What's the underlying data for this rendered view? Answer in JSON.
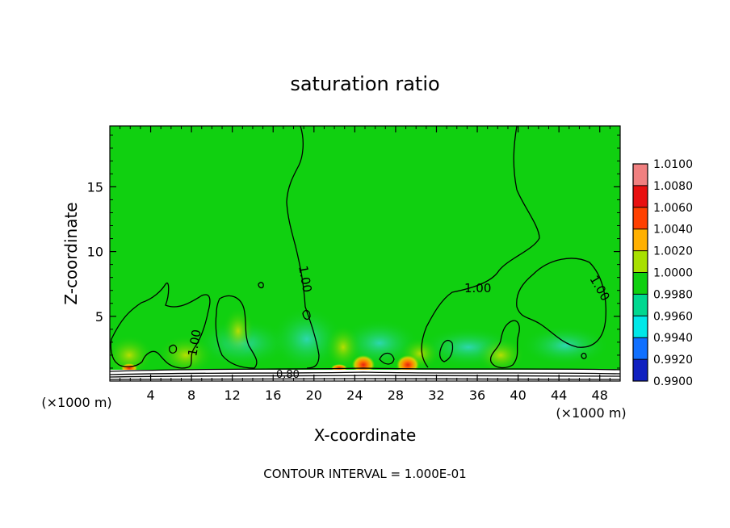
{
  "chart_data": {
    "type": "heatmap",
    "subtype": "filled-contour",
    "title": "saturation ratio",
    "xlabel": "X-coordinate",
    "ylabel": "Z-coordinate",
    "x_unit": "(×1000 m)",
    "x_unit_right": "(×1000 m)",
    "xlim": [
      0,
      50
    ],
    "ylim": [
      0,
      19.7
    ],
    "x_ticks": [
      4,
      8,
      12,
      16,
      20,
      24,
      28,
      32,
      36,
      40,
      44,
      48
    ],
    "y_ticks": [
      5,
      10,
      15
    ],
    "colorbar": {
      "levels": [
        "1.0100",
        "1.0080",
        "1.0060",
        "1.0040",
        "1.0020",
        "1.0000",
        "0.9980",
        "0.9960",
        "0.9940",
        "0.9920",
        "0.9900"
      ],
      "colors": [
        "#f08080",
        "#e81010",
        "#ff4000",
        "#ffb000",
        "#a8e000",
        "#10d010",
        "#00d890",
        "#00e8e8",
        "#1070ff",
        "#1020c0",
        "#6010a0"
      ]
    },
    "contour_labels": [
      "1.00",
      "1.00",
      "1.00",
      "1.00",
      "0.80"
    ],
    "contour_interval": "CONTOUR INTERVAL = 1.000E-01",
    "grid": false,
    "legend": "colorbar-right",
    "background_color": "#10d010"
  }
}
